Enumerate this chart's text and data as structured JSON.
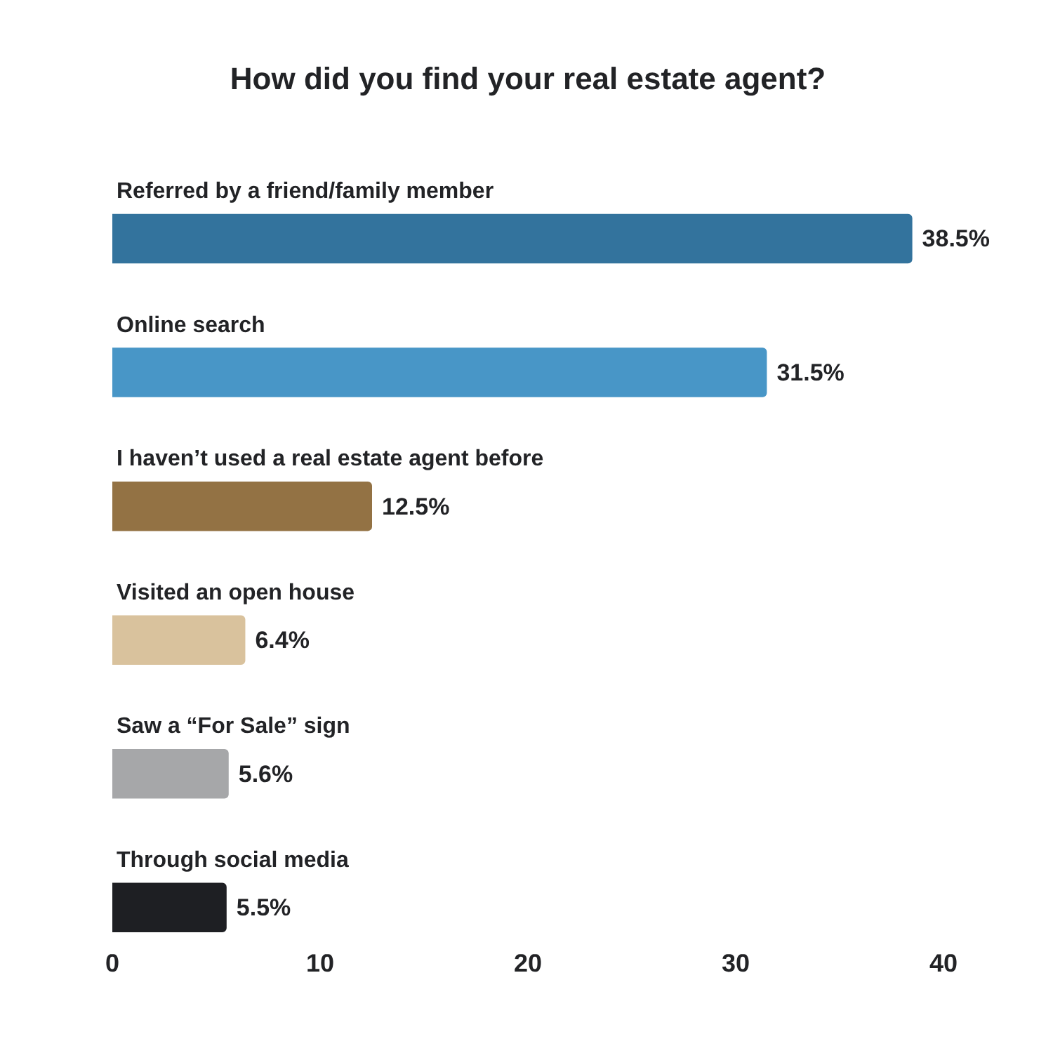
{
  "chart_data": {
    "type": "bar",
    "orientation": "horizontal",
    "title": "How did you find your real estate agent?",
    "categories": [
      "Referred by a friend/family member",
      "Online search",
      "I haven’t used a real estate agent before",
      "Visited an open house",
      "Saw a “For Sale” sign",
      "Through social media"
    ],
    "values": [
      38.5,
      31.5,
      12.5,
      6.4,
      5.6,
      5.5
    ],
    "colors": [
      "#33739d",
      "#4896c7",
      "#937244",
      "#d9c29d",
      "#a6a7a9",
      "#1e1f23"
    ],
    "value_labels": [
      "38.5%",
      "31.5%",
      "12.5%",
      "6.4%",
      "5.6%",
      "5.5%"
    ],
    "xlim": [
      0,
      40
    ],
    "xticks": [
      0,
      10,
      20,
      30,
      40
    ]
  }
}
